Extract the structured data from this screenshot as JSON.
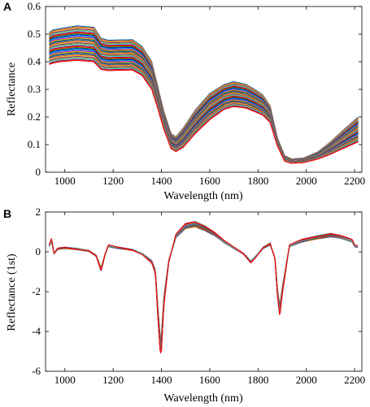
{
  "chart_data": [
    {
      "panel": "A",
      "type": "line",
      "xlabel": "Wavelength (nm)",
      "ylabel": "Reflectance",
      "xlim": [
        920,
        2230
      ],
      "ylim": [
        0,
        0.6
      ],
      "xticks": [
        1000,
        1200,
        1400,
        1600,
        1800,
        2000,
        2200
      ],
      "yticks": [
        0,
        0.1,
        0.2,
        0.3,
        0.4,
        0.5,
        0.6
      ],
      "ytick_labels": [
        "0",
        "0.1",
        "0.2",
        "0.3",
        "0.4",
        "0.5",
        "0.6"
      ],
      "grid": false,
      "series_count": 36,
      "base_curve": {
        "x": [
          935,
          950,
          980,
          1050,
          1120,
          1150,
          1180,
          1280,
          1320,
          1360,
          1385,
          1410,
          1440,
          1460,
          1490,
          1540,
          1600,
          1660,
          1700,
          1750,
          1790,
          1820,
          1850,
          1880,
          1910,
          1940,
          1990,
          2050,
          2100,
          2150,
          2215
        ],
        "y": [
          0.44,
          0.45,
          0.455,
          0.462,
          0.458,
          0.425,
          0.42,
          0.425,
          0.4,
          0.35,
          0.27,
          0.19,
          0.115,
          0.105,
          0.13,
          0.19,
          0.245,
          0.278,
          0.283,
          0.275,
          0.258,
          0.243,
          0.208,
          0.11,
          0.05,
          0.04,
          0.045,
          0.06,
          0.085,
          0.115,
          0.155
        ]
      },
      "envelope": {
        "upper": [
          0.505,
          0.515,
          0.52,
          0.53,
          0.525,
          0.485,
          0.478,
          0.48,
          0.455,
          0.4,
          0.31,
          0.22,
          0.14,
          0.128,
          0.16,
          0.225,
          0.285,
          0.318,
          0.328,
          0.318,
          0.298,
          0.28,
          0.24,
          0.125,
          0.06,
          0.048,
          0.052,
          0.075,
          0.11,
          0.15,
          0.2
        ],
        "lower": [
          0.39,
          0.395,
          0.4,
          0.405,
          0.4,
          0.372,
          0.368,
          0.37,
          0.35,
          0.3,
          0.23,
          0.155,
          0.085,
          0.075,
          0.09,
          0.14,
          0.19,
          0.228,
          0.238,
          0.232,
          0.218,
          0.206,
          0.18,
          0.095,
          0.04,
          0.032,
          0.035,
          0.048,
          0.065,
          0.085,
          0.11
        ]
      }
    },
    {
      "panel": "B",
      "type": "line",
      "xlabel": "Wavelength (nm)",
      "ylabel": "Reflectance (1st)",
      "xlim": [
        920,
        2230
      ],
      "ylim": [
        -6,
        2
      ],
      "xticks": [
        1000,
        1200,
        1400,
        1600,
        1800,
        2000,
        2200
      ],
      "yticks": [
        -6,
        -4,
        -2,
        0,
        2
      ],
      "ytick_labels": [
        "-6",
        "-4",
        "-2",
        "0",
        "2"
      ],
      "grid": false,
      "series_count": 36,
      "base_curve": {
        "x": [
          935,
          945,
          955,
          970,
          1000,
          1050,
          1100,
          1130,
          1150,
          1165,
          1180,
          1220,
          1280,
          1320,
          1340,
          1360,
          1375,
          1385,
          1395,
          1400,
          1410,
          1430,
          1460,
          1500,
          1540,
          1580,
          1620,
          1660,
          1700,
          1740,
          1770,
          1790,
          1820,
          1850,
          1870,
          1880,
          1890,
          1900,
          1930,
          1980,
          2050,
          2100,
          2140,
          2190,
          2200,
          2215
        ],
        "y": [
          0.3,
          0.6,
          -0.1,
          0.15,
          0.2,
          0.15,
          0.05,
          -0.2,
          -0.9,
          -0.2,
          0.3,
          0.2,
          0.1,
          -0.1,
          -0.3,
          -0.5,
          -1.0,
          -3.0,
          -4.7,
          -4.6,
          -2.5,
          -0.5,
          0.8,
          1.3,
          1.4,
          1.2,
          0.9,
          0.5,
          0.2,
          -0.1,
          -0.5,
          -0.25,
          0.2,
          0.4,
          -0.3,
          -2.0,
          -3.0,
          -2.0,
          0.3,
          0.55,
          0.75,
          0.85,
          0.75,
          0.55,
          0.3,
          0.25
        ]
      }
    }
  ]
}
